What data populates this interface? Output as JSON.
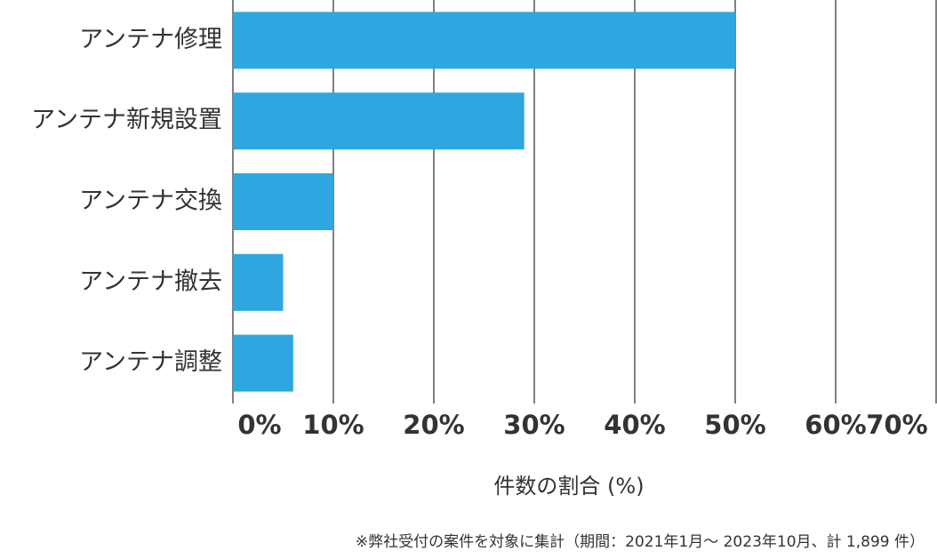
{
  "chart_data": {
    "type": "bar",
    "orientation": "horizontal",
    "categories": [
      "アンテナ修理",
      "アンテナ新規設置",
      "アンテナ交換",
      "アンテナ撤去",
      "アンテナ調整"
    ],
    "values": [
      50,
      29,
      10,
      5,
      6
    ],
    "color": "#2ea7e0",
    "xlabel": "件数の割合 (%)",
    "xlim": [
      0,
      70
    ],
    "xticks": [
      {
        "value": 0,
        "label": "0%"
      },
      {
        "value": 10,
        "label": "10%"
      },
      {
        "value": 20,
        "label": "20%"
      },
      {
        "value": 30,
        "label": "30%"
      },
      {
        "value": 40,
        "label": "40%"
      },
      {
        "value": 50,
        "label": "50%"
      },
      {
        "value": 60,
        "label": "60%"
      },
      {
        "value": 70,
        "label": "70%"
      }
    ],
    "grid": true,
    "note": "※弊社受付の案件を対象に集計（期間：2021年1月～ 2023年10月、計 1,899 件）"
  }
}
